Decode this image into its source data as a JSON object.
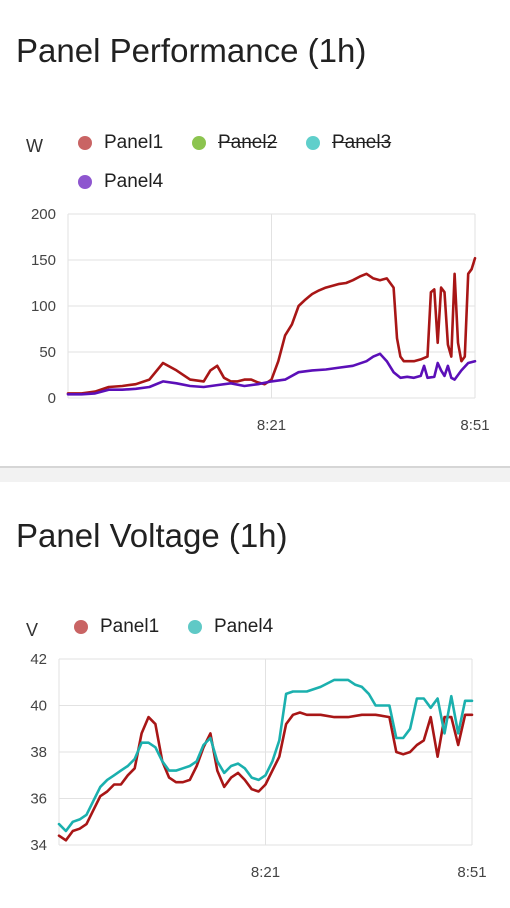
{
  "colors": {
    "panel1": "#a81616",
    "panel1_legend": "#c96464",
    "panel2_legend": "#8cc44f",
    "panel3_legend": "#5fcfcb",
    "panel4": "#5b0fb8",
    "panel4_legend": "#8e56cf",
    "panel4_volt": "#1bb0ae",
    "panel4_volt_legend": "#5fc9c6",
    "grid": "#e0e0e0"
  },
  "chart_data": [
    {
      "type": "line",
      "title": "Panel Performance (1h)",
      "ylabel": "W",
      "ylim": [
        0,
        200
      ],
      "yticks": [
        "0",
        "50",
        "100",
        "150",
        "200"
      ],
      "xticks": [
        "8:21",
        "8:51"
      ],
      "x_range": [
        "7:51",
        "8:51"
      ],
      "grid": true,
      "legend": [
        {
          "name": "Panel1",
          "hidden": false
        },
        {
          "name": "Panel2",
          "hidden": true
        },
        {
          "name": "Panel3",
          "hidden": true
        },
        {
          "name": "Panel4",
          "hidden": false
        }
      ],
      "series": [
        {
          "name": "Panel1",
          "x_minutes": [
            0,
            2,
            4,
            6,
            8,
            10,
            12,
            14,
            16,
            18,
            20,
            21,
            22,
            23,
            24,
            25,
            26,
            27,
            28,
            29,
            30,
            31,
            32,
            33,
            34,
            35,
            35.5,
            36,
            37,
            38,
            39,
            40,
            41,
            42,
            43,
            44,
            45,
            46,
            47,
            48,
            48.5,
            49,
            49.5,
            50,
            51,
            52,
            53,
            53.5,
            54,
            54.5,
            55,
            55.5,
            56,
            56.5,
            57,
            57.5,
            58,
            58.5,
            59,
            59.5,
            60
          ],
          "values": [
            5,
            5,
            7,
            12,
            13,
            15,
            20,
            38,
            30,
            20,
            18,
            30,
            35,
            22,
            18,
            18,
            20,
            20,
            17,
            15,
            20,
            40,
            68,
            80,
            100,
            107,
            110,
            113,
            117,
            120,
            122,
            124,
            125,
            128,
            132,
            135,
            130,
            128,
            130,
            120,
            65,
            45,
            40,
            40,
            40,
            42,
            45,
            115,
            118,
            60,
            120,
            115,
            58,
            45,
            135,
            60,
            40,
            45,
            135,
            140,
            152
          ]
        },
        {
          "name": "Panel4",
          "x_minutes": [
            0,
            2,
            4,
            6,
            8,
            10,
            12,
            14,
            16,
            18,
            20,
            22,
            24,
            26,
            28,
            30,
            32,
            34,
            36,
            38,
            40,
            42,
            44,
            45,
            46,
            47,
            48,
            49,
            50,
            51,
            52,
            52.5,
            53,
            54,
            54.5,
            55,
            55.5,
            56,
            56.5,
            57,
            58,
            59,
            60
          ],
          "values": [
            4,
            4,
            5,
            9,
            9,
            10,
            12,
            18,
            16,
            13,
            12,
            14,
            16,
            13,
            15,
            18,
            20,
            28,
            30,
            31,
            33,
            35,
            40,
            45,
            48,
            40,
            28,
            22,
            23,
            22,
            24,
            35,
            22,
            23,
            38,
            30,
            24,
            35,
            22,
            20,
            30,
            38,
            40
          ]
        }
      ]
    },
    {
      "type": "line",
      "title": "Panel Voltage (1h)",
      "ylabel": "V",
      "ylim": [
        34,
        42
      ],
      "yticks": [
        "34",
        "36",
        "38",
        "40",
        "42"
      ],
      "xticks": [
        "8:21",
        "8:51"
      ],
      "x_range": [
        "7:51",
        "8:51"
      ],
      "grid": true,
      "legend": [
        {
          "name": "Panel1",
          "hidden": false
        },
        {
          "name": "Panel4",
          "hidden": false
        }
      ],
      "series": [
        {
          "name": "Panel1",
          "x_minutes": [
            0,
            1,
            2,
            3,
            4,
            5,
            6,
            7,
            8,
            9,
            10,
            11,
            12,
            13,
            14,
            15,
            16,
            17,
            18,
            19,
            20,
            21,
            22,
            23,
            24,
            25,
            26,
            27,
            28,
            29,
            30,
            31,
            32,
            33,
            34,
            35,
            36,
            38,
            40,
            42,
            44,
            46,
            48,
            49,
            50,
            51,
            52,
            53,
            54,
            55,
            56,
            57,
            58,
            59,
            60
          ],
          "values": [
            34.4,
            34.2,
            34.6,
            34.7,
            34.9,
            35.5,
            36.1,
            36.3,
            36.6,
            36.6,
            37.0,
            37.3,
            38.8,
            39.5,
            39.2,
            37.6,
            36.9,
            36.7,
            36.7,
            36.8,
            37.4,
            38.2,
            38.8,
            37.2,
            36.5,
            36.9,
            37.1,
            36.8,
            36.4,
            36.3,
            36.6,
            37.2,
            37.8,
            39.2,
            39.6,
            39.7,
            39.6,
            39.6,
            39.5,
            39.5,
            39.6,
            39.6,
            39.5,
            38.0,
            37.9,
            38.0,
            38.3,
            38.5,
            39.5,
            37.8,
            39.5,
            39.5,
            38.3,
            39.6,
            39.6
          ]
        },
        {
          "name": "Panel4",
          "x_minutes": [
            0,
            1,
            2,
            3,
            4,
            5,
            6,
            7,
            8,
            9,
            10,
            11,
            12,
            13,
            14,
            15,
            16,
            17,
            18,
            19,
            20,
            21,
            22,
            23,
            24,
            25,
            26,
            27,
            28,
            29,
            30,
            31,
            32,
            33,
            34,
            35,
            36,
            38,
            40,
            42,
            43,
            44,
            45,
            46,
            47,
            48,
            49,
            50,
            51,
            52,
            53,
            54,
            55,
            56,
            57,
            58,
            59,
            60
          ],
          "values": [
            34.9,
            34.6,
            35.0,
            35.1,
            35.3,
            35.9,
            36.5,
            36.8,
            37.0,
            37.2,
            37.4,
            37.7,
            38.4,
            38.4,
            38.2,
            37.6,
            37.2,
            37.2,
            37.3,
            37.4,
            37.6,
            38.3,
            38.6,
            37.6,
            37.1,
            37.4,
            37.5,
            37.3,
            36.9,
            36.8,
            37.0,
            37.6,
            38.5,
            40.5,
            40.6,
            40.6,
            40.6,
            40.8,
            41.1,
            41.1,
            40.9,
            40.8,
            40.5,
            40.0,
            40.0,
            40.0,
            38.6,
            38.6,
            39.0,
            40.3,
            40.3,
            39.9,
            40.3,
            38.8,
            40.4,
            38.8,
            40.2,
            40.2
          ]
        }
      ]
    }
  ]
}
